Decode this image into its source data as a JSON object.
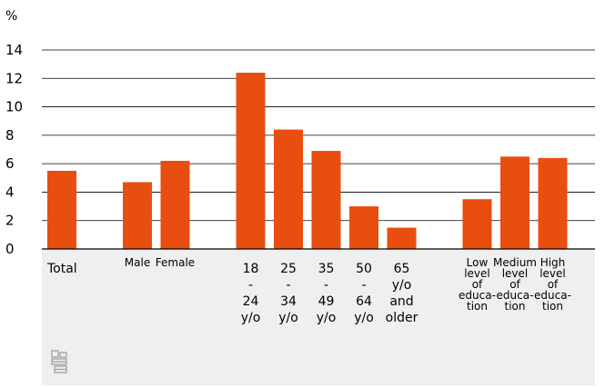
{
  "chart_data": {
    "type": "bar",
    "ylabel": "%",
    "ylim": [
      0,
      14
    ],
    "yticks": [
      0,
      2,
      4,
      6,
      8,
      10,
      12,
      14
    ],
    "grid": true,
    "bar_color": "#e84e0f",
    "axis_panel_color": "#efefef",
    "categories": [
      {
        "lines": [
          "Total"
        ],
        "value": 5.5,
        "group": 0
      },
      {
        "lines": [
          "Male"
        ],
        "value": 4.7,
        "group": 1
      },
      {
        "lines": [
          "Female"
        ],
        "value": 6.2,
        "group": 1
      },
      {
        "lines": [
          "18",
          "-",
          "24",
          "y/o"
        ],
        "value": 12.4,
        "group": 2
      },
      {
        "lines": [
          "25",
          "-",
          "34",
          "y/o"
        ],
        "value": 8.4,
        "group": 2
      },
      {
        "lines": [
          "35",
          "-",
          "49",
          "y/o"
        ],
        "value": 6.9,
        "group": 2
      },
      {
        "lines": [
          "50",
          "-",
          "64",
          "y/o"
        ],
        "value": 3.0,
        "group": 2
      },
      {
        "lines": [
          "65",
          "y/o",
          "and",
          "older"
        ],
        "value": 1.5,
        "group": 2
      },
      {
        "lines": [
          "Low",
          "level",
          "of",
          "educa-",
          "tion"
        ],
        "value": 3.5,
        "group": 3
      },
      {
        "lines": [
          "Medium",
          "level",
          "of",
          "educa-",
          "tion"
        ],
        "value": 6.5,
        "group": 3
      },
      {
        "lines": [
          "High",
          "level",
          "of",
          "educa-",
          "tion"
        ],
        "value": 6.4,
        "group": 3
      }
    ]
  },
  "logo": {
    "icon": "cbs-logo-icon"
  }
}
